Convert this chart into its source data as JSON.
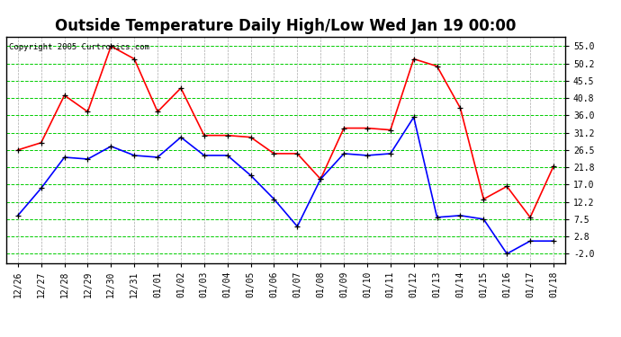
{
  "title": "Outside Temperature Daily High/Low Wed Jan 19 00:00",
  "copyright": "Copyright 2005 Curtronics.com",
  "labels": [
    "12/26",
    "12/27",
    "12/28",
    "12/29",
    "12/30",
    "12/31",
    "01/01",
    "01/02",
    "01/03",
    "01/04",
    "01/05",
    "01/06",
    "01/07",
    "01/08",
    "01/09",
    "01/10",
    "01/11",
    "01/12",
    "01/13",
    "01/14",
    "01/15",
    "01/16",
    "01/17",
    "01/18"
  ],
  "high_temps": [
    26.5,
    28.5,
    41.5,
    37.0,
    55.0,
    51.5,
    37.0,
    43.5,
    30.5,
    30.5,
    30.0,
    25.5,
    25.5,
    18.5,
    32.5,
    32.5,
    32.0,
    51.5,
    49.5,
    38.0,
    13.0,
    16.5,
    8.0,
    22.0
  ],
  "low_temps": [
    8.5,
    16.0,
    24.5,
    24.0,
    27.5,
    25.0,
    24.5,
    30.0,
    25.0,
    25.0,
    19.5,
    13.0,
    5.5,
    18.5,
    25.5,
    25.0,
    25.5,
    35.5,
    8.0,
    8.5,
    7.5,
    -2.0,
    1.5,
    1.5
  ],
  "high_color": "#ff0000",
  "low_color": "#0000ff",
  "bg_color": "#ffffff",
  "plot_bg": "#ffffff",
  "grid_h_color": "#00cc00",
  "grid_v_color": "#aaaaaa",
  "yticks": [
    55.0,
    50.2,
    45.5,
    40.8,
    36.0,
    31.2,
    26.5,
    21.8,
    17.0,
    12.2,
    7.5,
    2.8,
    -2.0
  ],
  "ylim": [
    -4.5,
    57.5
  ],
  "title_fontsize": 12,
  "axis_fontsize": 7,
  "copyright_fontsize": 6.5
}
